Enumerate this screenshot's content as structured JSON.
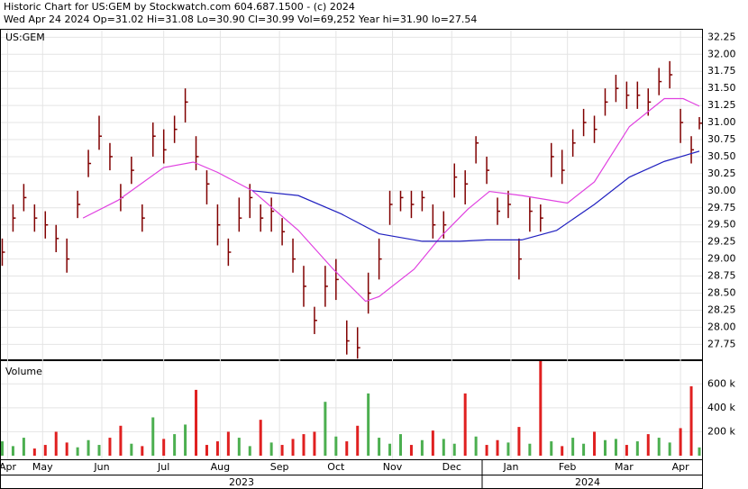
{
  "chart_data": {
    "type": "ohlc",
    "title": "Historic Chart for US:GEM by Stockwatch.com 604.687.1500 - (c) 2024",
    "subtitle": "Wed Apr 24 2024  Op=31.02  Hi=31.08  Lo=30.90  Cl=30.99  Vol=69,252  Year hi=31.90  lo=27.54",
    "symbol": "US:GEM",
    "volume_label": "Volume",
    "years": [
      "2023",
      "2024"
    ],
    "x": [
      0,
      4,
      8,
      12,
      16,
      20,
      24,
      28,
      32,
      36,
      40,
      44,
      48,
      52,
      56,
      60,
      64,
      68,
      72,
      76,
      80,
      84,
      88,
      92,
      96,
      100,
      104,
      108,
      112,
      116,
      120,
      124,
      128,
      132,
      136,
      140,
      144,
      148,
      152,
      156,
      160,
      164,
      168,
      172,
      176,
      180,
      184,
      188,
      192,
      196,
      200,
      204,
      208,
      212,
      216,
      220,
      224,
      228,
      232,
      236,
      240,
      244,
      248,
      252,
      256,
      259
    ],
    "xlim": [
      -0.5,
      260
    ],
    "xticks": [
      {
        "value": 2,
        "label": "Apr"
      },
      {
        "value": 15,
        "label": "May"
      },
      {
        "value": 37,
        "label": "Jun"
      },
      {
        "value": 60,
        "label": "Jul"
      },
      {
        "value": 81,
        "label": "Aug"
      },
      {
        "value": 103,
        "label": "Sep"
      },
      {
        "value": 124,
        "label": "Oct"
      },
      {
        "value": 145,
        "label": "Nov"
      },
      {
        "value": 167,
        "label": "Dec"
      },
      {
        "value": 189,
        "label": "Jan"
      },
      {
        "value": 210,
        "label": "Feb"
      },
      {
        "value": 231,
        "label": "Mar"
      },
      {
        "value": 252,
        "label": "Apr"
      }
    ],
    "high": [
      29.3,
      29.8,
      30.1,
      29.8,
      29.7,
      29.5,
      29.3,
      30.0,
      30.6,
      31.1,
      30.7,
      30.1,
      30.5,
      29.8,
      31.0,
      30.9,
      31.1,
      31.5,
      30.8,
      30.3,
      29.8,
      29.3,
      29.9,
      30.1,
      29.8,
      29.9,
      29.6,
      29.3,
      28.9,
      28.3,
      28.9,
      29.0,
      28.1,
      28.0,
      28.8,
      29.3,
      30.0,
      30.0,
      30.0,
      30.0,
      29.8,
      29.7,
      30.4,
      30.3,
      30.8,
      30.5,
      29.9,
      30.0,
      29.3,
      29.9,
      29.8,
      30.7,
      30.6,
      30.9,
      31.2,
      31.1,
      31.5,
      31.7,
      31.6,
      31.6,
      31.5,
      31.8,
      31.9,
      31.2,
      30.8,
      31.08
    ],
    "low": [
      28.9,
      29.4,
      29.7,
      29.4,
      29.3,
      29.1,
      28.8,
      29.6,
      30.2,
      30.6,
      30.3,
      29.7,
      30.1,
      29.4,
      30.5,
      30.4,
      30.7,
      31.0,
      30.3,
      29.8,
      29.2,
      28.9,
      29.4,
      29.6,
      29.4,
      29.4,
      29.2,
      28.8,
      28.3,
      27.9,
      28.3,
      28.4,
      27.6,
      27.54,
      28.2,
      28.7,
      29.5,
      29.7,
      29.6,
      29.7,
      29.3,
      29.3,
      29.9,
      29.8,
      30.4,
      30.1,
      29.5,
      29.6,
      28.7,
      29.4,
      29.4,
      30.2,
      30.1,
      30.5,
      30.8,
      30.7,
      31.1,
      31.3,
      31.2,
      31.2,
      31.1,
      31.4,
      31.5,
      30.7,
      30.4,
      30.9
    ],
    "close": [
      29.1,
      29.6,
      29.9,
      29.6,
      29.5,
      29.3,
      29.0,
      29.8,
      30.4,
      30.8,
      30.5,
      29.9,
      30.3,
      29.6,
      30.8,
      30.6,
      30.9,
      31.3,
      30.5,
      30.1,
      29.5,
      29.1,
      29.6,
      29.9,
      29.6,
      29.7,
      29.4,
      29.0,
      28.6,
      28.1,
      28.6,
      28.7,
      27.8,
      27.7,
      28.5,
      29.0,
      29.8,
      29.9,
      29.8,
      29.9,
      29.5,
      29.5,
      30.2,
      30.1,
      30.7,
      30.3,
      29.7,
      29.8,
      29.0,
      29.7,
      29.6,
      30.5,
      30.3,
      30.7,
      31.0,
      30.9,
      31.3,
      31.5,
      31.4,
      31.4,
      31.3,
      31.6,
      31.7,
      31.0,
      30.6,
      30.99
    ],
    "bar_color": "#800000",
    "volume": [
      120000,
      80000,
      150000,
      60000,
      90000,
      200000,
      110000,
      70000,
      130000,
      90000,
      150000,
      250000,
      100000,
      80000,
      320000,
      140000,
      180000,
      260000,
      550000,
      90000,
      120000,
      200000,
      150000,
      80000,
      300000,
      110000,
      90000,
      140000,
      180000,
      200000,
      450000,
      160000,
      120000,
      250000,
      520000,
      150000,
      100000,
      180000,
      90000,
      130000,
      210000,
      140000,
      100000,
      520000,
      160000,
      90000,
      130000,
      110000,
      240000,
      100000,
      790000,
      120000,
      80000,
      150000,
      100000,
      200000,
      130000,
      140000,
      90000,
      120000,
      180000,
      150000,
      110000,
      230000,
      580000,
      69252
    ],
    "up_color": "#4caf50",
    "down_color": "#e02020",
    "ylim": [
      27.53,
      32.36
    ],
    "yticks": [
      27.75,
      {
        "value": 28,
        "label": "28.00"
      },
      28.25,
      {
        "value": 28.5,
        "label": "28.50"
      },
      28.75,
      {
        "value": 29,
        "label": "29.00"
      },
      29.25,
      {
        "value": 29.5,
        "label": "29.50"
      },
      29.75,
      {
        "value": 30,
        "label": "30.00"
      },
      30.25,
      {
        "value": 30.5,
        "label": "30.50"
      },
      30.75,
      {
        "value": 31,
        "label": "31.00"
      },
      31.25,
      {
        "value": 31.5,
        "label": "31.50"
      },
      31.75,
      {
        "value": 32,
        "label": "32.00"
      },
      32.25
    ],
    "vol_ylim": [
      -30000,
      790000
    ],
    "vol_yticks": [
      {
        "value": 200000,
        "label": "200 k"
      },
      {
        "value": 400000,
        "label": "400 k"
      },
      {
        "value": 600000,
        "label": "600 k"
      }
    ],
    "grid": true,
    "moving_averages": [
      {
        "color": "#e040e0",
        "x": [
          30,
          43,
          60,
          71,
          80,
          93,
          110,
          123,
          135,
          140,
          153,
          163,
          173,
          181,
          193,
          210,
          220,
          233,
          246,
          253,
          259
        ],
        "values": [
          29.6,
          29.86,
          30.34,
          30.42,
          30.27,
          30.0,
          29.42,
          28.85,
          28.38,
          28.45,
          28.85,
          29.33,
          29.73,
          29.99,
          29.93,
          29.82,
          30.13,
          30.94,
          31.35,
          31.35,
          31.24
        ]
      },
      {
        "color": "#2020c0",
        "x": [
          93,
          110,
          126,
          140,
          156,
          170,
          180,
          193,
          206,
          220,
          233,
          246,
          259
        ],
        "values": [
          30.0,
          29.93,
          29.66,
          29.37,
          29.26,
          29.26,
          29.28,
          29.28,
          29.42,
          29.8,
          30.2,
          30.43,
          30.58
        ]
      }
    ]
  }
}
